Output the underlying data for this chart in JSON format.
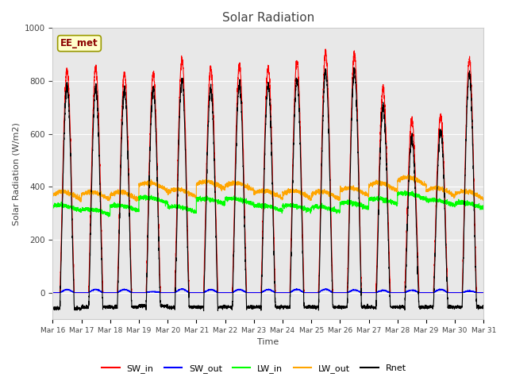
{
  "title": "Solar Radiation",
  "ylabel": "Solar Radiation (W/m2)",
  "xlabel": "Time",
  "ylim": [
    -100,
    1000
  ],
  "background_color": "#ffffff",
  "plot_bg_color": "#e8e8e8",
  "watermark": "EE_met",
  "x_tick_labels": [
    "Mar 16",
    "Mar 17",
    "Mar 18",
    "Mar 19",
    "Mar 20",
    "Mar 21",
    "Mar 22",
    "Mar 23",
    "Mar 24",
    "Mar 25",
    "Mar 26",
    "Mar 27",
    "Mar 28",
    "Mar 29",
    "Mar 30",
    "Mar 31"
  ],
  "num_days": 15,
  "sw_in_peak": [
    840,
    850,
    830,
    825,
    880,
    850,
    860,
    850,
    875,
    905,
    905,
    770,
    650,
    670,
    880
  ],
  "sw_out_peak": [
    95,
    100,
    95,
    30,
    110,
    95,
    95,
    95,
    100,
    105,
    80,
    70,
    75,
    100,
    50
  ],
  "lw_in_base": [
    315,
    300,
    315,
    345,
    310,
    340,
    340,
    315,
    315,
    310,
    325,
    340,
    360,
    335,
    325
  ],
  "lw_out_base": [
    360,
    360,
    360,
    395,
    370,
    400,
    395,
    365,
    365,
    362,
    375,
    395,
    415,
    375,
    363
  ],
  "rnet_night": [
    -60,
    -55,
    -55,
    -50,
    -55,
    -55,
    -55,
    -55,
    -55,
    -55,
    -55,
    -55,
    -55,
    -55,
    -55
  ],
  "sw_in_color": "#ff0000",
  "sw_out_color": "#0000ff",
  "lw_in_color": "#00ff00",
  "lw_out_color": "#ffa500",
  "rnet_color": "#000000"
}
